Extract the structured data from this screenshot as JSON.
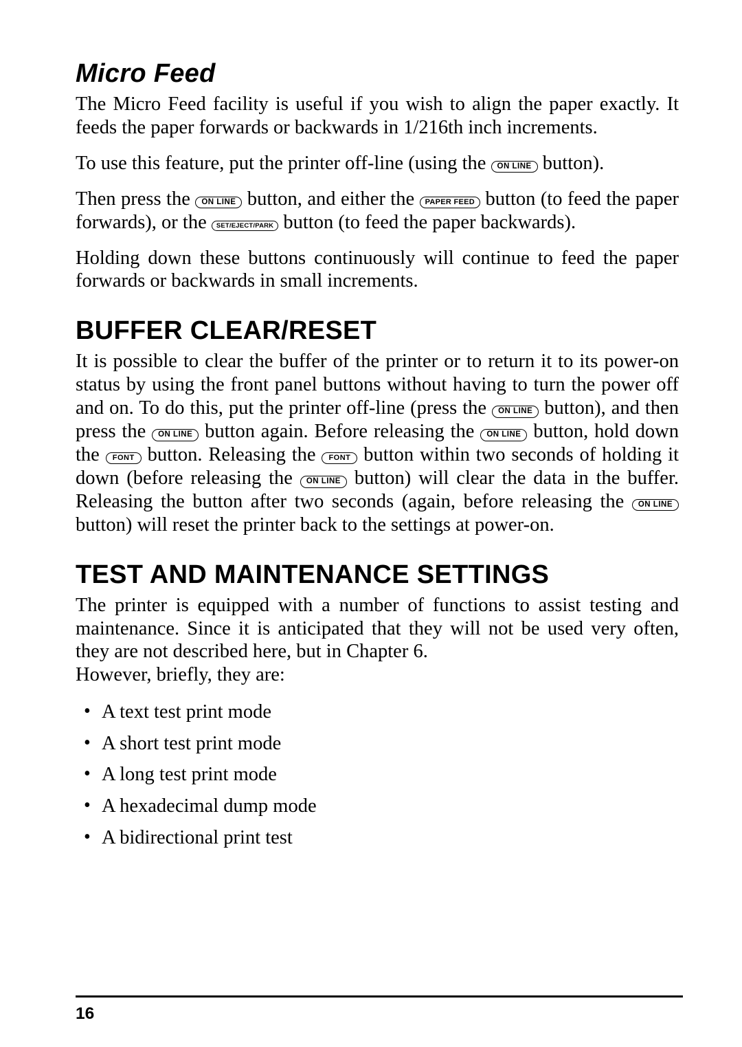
{
  "buttons": {
    "online": "ON LINE",
    "paper_feed": "PAPER FEED",
    "set_eject_park": "SET/EJECT/PARK",
    "font": "FONT"
  },
  "microFeed": {
    "title": "Micro Feed",
    "p1a": "The Micro Feed facility is useful if you wish to align the paper exactly. It feeds the paper forwards or backwards in 1/216th inch increments.",
    "p2a": "To use this feature, put the printer off-line (using the ",
    "p2b": " button).",
    "p3a": "Then press the ",
    "p3b": " button, and either the ",
    "p3c": " button (to feed the paper forwards), or the ",
    "p3d": " button (to feed the paper backwards).",
    "p4": "Holding down these buttons continuously will continue to feed the paper forwards or backwards in small increments."
  },
  "bufferClear": {
    "title": "BUFFER CLEAR/RESET",
    "p1a": "It is possible to clear the buffer of the printer or to return it to its power-on status by using the front panel buttons without having to turn the power off and on. To do this, put the printer off-line (press the ",
    "p1b": " button), and then press the ",
    "p1c": " button again. Before releasing the ",
    "p1d": " button, hold down the ",
    "p1e": " button. Releasing the ",
    "p1f": " button within two seconds of holding it down (before releasing the ",
    "p1g": " button) will clear the data in the buffer. Releasing the button after two seconds (again, before releasing the ",
    "p1h": " button) will reset the printer back to the settings at power-on."
  },
  "testMaint": {
    "title": "TEST AND MAINTENANCE SETTINGS",
    "p1": "The printer is equipped with a number of functions to assist testing and maintenance. Since it is anticipated that they will not be used very often, they are not described here, but in Chapter 6.",
    "p2": "However, briefly, they are:",
    "items": {
      "i1": "A text test print mode",
      "i2": "A short test print mode",
      "i3": "A long test print mode",
      "i4": "A hexadecimal dump mode",
      "i5": "A bidirectional print test"
    }
  },
  "pageNumber": "16"
}
